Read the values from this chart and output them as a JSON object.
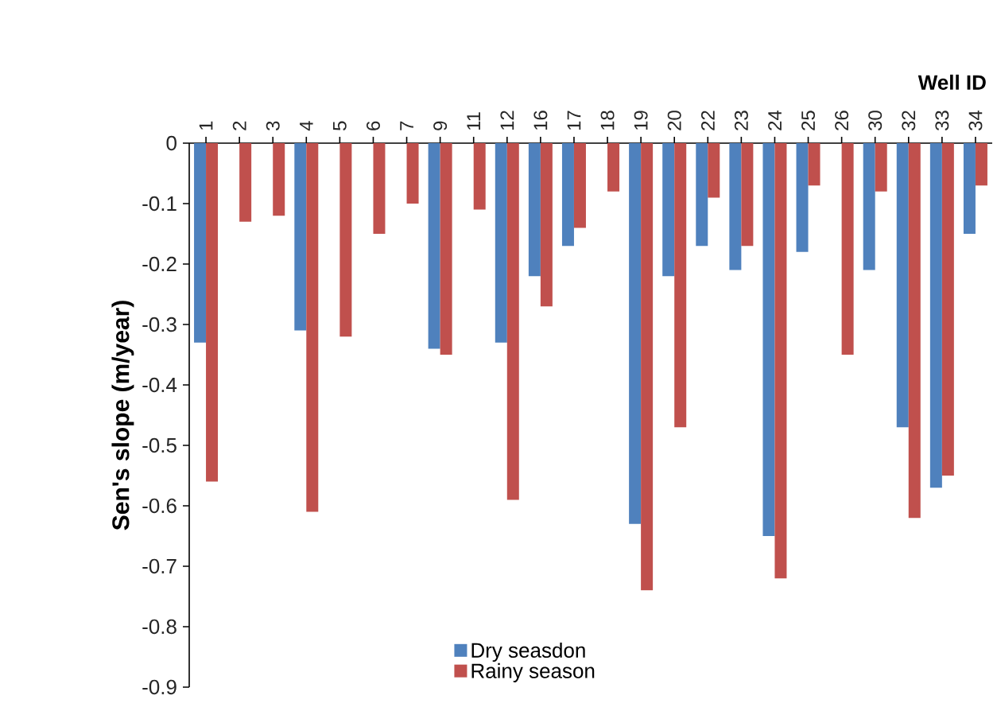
{
  "chart_data": {
    "type": "bar",
    "xlabel": "Well ID",
    "ylabel": "Sen's slope (m/year)",
    "categories": [
      "1",
      "2",
      "3",
      "4",
      "5",
      "6",
      "7",
      "9",
      "11",
      "12",
      "16",
      "17",
      "18",
      "19",
      "20",
      "22",
      "23",
      "24",
      "25",
      "26",
      "30",
      "32",
      "33",
      "34"
    ],
    "series": [
      {
        "name": "Dry seasdon",
        "color": "#4f81bd",
        "values": [
          -0.33,
          null,
          null,
          -0.31,
          null,
          null,
          null,
          -0.34,
          null,
          -0.33,
          -0.22,
          -0.17,
          null,
          -0.63,
          -0.22,
          -0.17,
          -0.21,
          -0.65,
          -0.18,
          null,
          -0.21,
          -0.47,
          -0.57,
          -0.15
        ]
      },
      {
        "name": "Rainy season",
        "color": "#c0504d",
        "values": [
          -0.56,
          -0.13,
          -0.12,
          -0.61,
          -0.32,
          -0.15,
          -0.1,
          -0.35,
          -0.11,
          -0.59,
          -0.27,
          -0.14,
          -0.08,
          -0.74,
          -0.47,
          -0.09,
          -0.17,
          -0.72,
          -0.07,
          -0.35,
          -0.08,
          -0.62,
          -0.55,
          -0.07
        ]
      }
    ],
    "ylim": [
      -0.9,
      0
    ],
    "yticks": [
      0,
      -0.1,
      -0.2,
      -0.3,
      -0.4,
      -0.5,
      -0.6,
      -0.7,
      -0.8,
      -0.9
    ],
    "legend": "bottom"
  }
}
